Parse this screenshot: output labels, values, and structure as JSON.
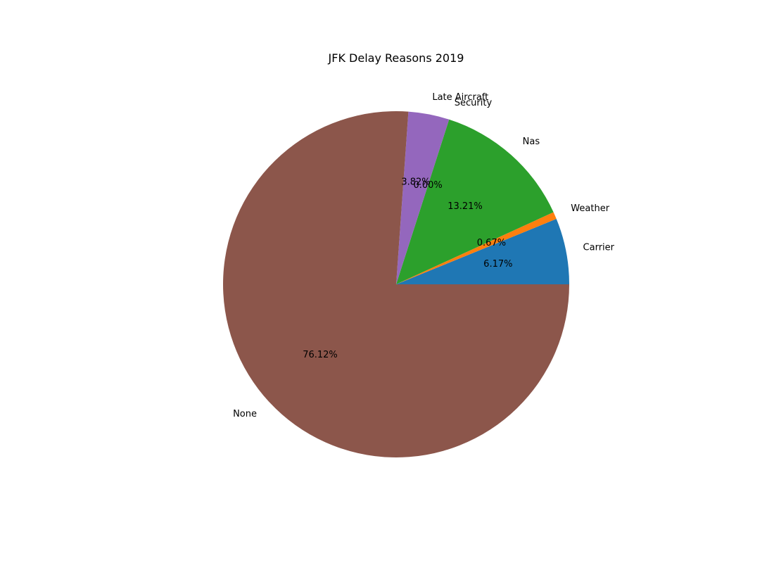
{
  "chart_data": {
    "type": "pie",
    "title": "JFK Delay Reasons 2019",
    "categories": [
      "Carrier",
      "Weather",
      "Nas",
      "Security",
      "Late Aircraft",
      "None"
    ],
    "values": [
      6.17,
      0.67,
      13.21,
      0.0,
      3.82,
      76.12
    ],
    "value_labels": [
      "6.17%",
      "0.67%",
      "13.21%",
      "0.00%",
      "3.82%",
      "76.12%"
    ],
    "colors": [
      "#1f77b4",
      "#ff7f0e",
      "#2ca02c",
      "#d62728",
      "#9467bd",
      "#8c564b"
    ],
    "start_angle_deg": 0,
    "direction": "counterclockwise",
    "legend": "none"
  }
}
